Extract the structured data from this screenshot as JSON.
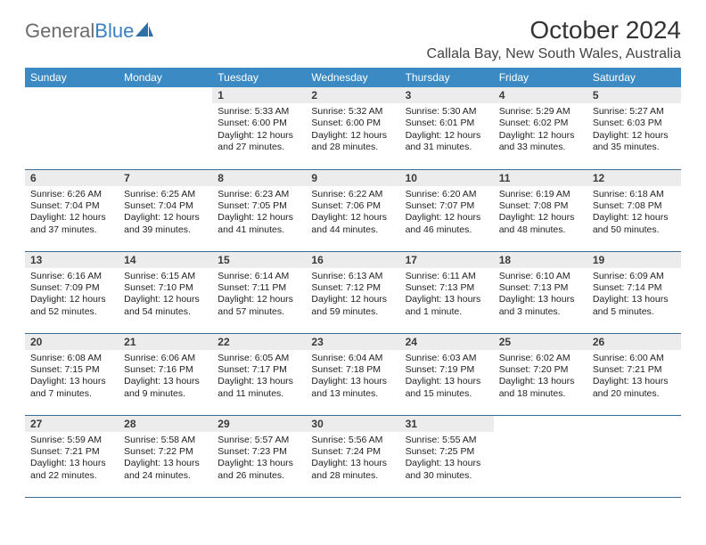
{
  "logo": {
    "part1": "General",
    "part2": "Blue"
  },
  "title": "October 2024",
  "location": "Callala Bay, New South Wales, Australia",
  "colors": {
    "header_bg": "#3b8ac4",
    "header_text": "#ffffff",
    "daynum_bg": "#ececec",
    "row_border": "#3d6c93",
    "logo_blue": "#3b7fc4",
    "logo_gray": "#6b6b6b"
  },
  "weekdays": [
    "Sunday",
    "Monday",
    "Tuesday",
    "Wednesday",
    "Thursday",
    "Friday",
    "Saturday"
  ],
  "weeks": [
    [
      {
        "empty": true
      },
      {
        "empty": true
      },
      {
        "n": "1",
        "sr": "5:33 AM",
        "ss": "6:00 PM",
        "dl": "12 hours and 27 minutes."
      },
      {
        "n": "2",
        "sr": "5:32 AM",
        "ss": "6:00 PM",
        "dl": "12 hours and 28 minutes."
      },
      {
        "n": "3",
        "sr": "5:30 AM",
        "ss": "6:01 PM",
        "dl": "12 hours and 31 minutes."
      },
      {
        "n": "4",
        "sr": "5:29 AM",
        "ss": "6:02 PM",
        "dl": "12 hours and 33 minutes."
      },
      {
        "n": "5",
        "sr": "5:27 AM",
        "ss": "6:03 PM",
        "dl": "12 hours and 35 minutes."
      }
    ],
    [
      {
        "n": "6",
        "sr": "6:26 AM",
        "ss": "7:04 PM",
        "dl": "12 hours and 37 minutes."
      },
      {
        "n": "7",
        "sr": "6:25 AM",
        "ss": "7:04 PM",
        "dl": "12 hours and 39 minutes."
      },
      {
        "n": "8",
        "sr": "6:23 AM",
        "ss": "7:05 PM",
        "dl": "12 hours and 41 minutes."
      },
      {
        "n": "9",
        "sr": "6:22 AM",
        "ss": "7:06 PM",
        "dl": "12 hours and 44 minutes."
      },
      {
        "n": "10",
        "sr": "6:20 AM",
        "ss": "7:07 PM",
        "dl": "12 hours and 46 minutes."
      },
      {
        "n": "11",
        "sr": "6:19 AM",
        "ss": "7:08 PM",
        "dl": "12 hours and 48 minutes."
      },
      {
        "n": "12",
        "sr": "6:18 AM",
        "ss": "7:08 PM",
        "dl": "12 hours and 50 minutes."
      }
    ],
    [
      {
        "n": "13",
        "sr": "6:16 AM",
        "ss": "7:09 PM",
        "dl": "12 hours and 52 minutes."
      },
      {
        "n": "14",
        "sr": "6:15 AM",
        "ss": "7:10 PM",
        "dl": "12 hours and 54 minutes."
      },
      {
        "n": "15",
        "sr": "6:14 AM",
        "ss": "7:11 PM",
        "dl": "12 hours and 57 minutes."
      },
      {
        "n": "16",
        "sr": "6:13 AM",
        "ss": "7:12 PM",
        "dl": "12 hours and 59 minutes."
      },
      {
        "n": "17",
        "sr": "6:11 AM",
        "ss": "7:13 PM",
        "dl": "13 hours and 1 minute."
      },
      {
        "n": "18",
        "sr": "6:10 AM",
        "ss": "7:13 PM",
        "dl": "13 hours and 3 minutes."
      },
      {
        "n": "19",
        "sr": "6:09 AM",
        "ss": "7:14 PM",
        "dl": "13 hours and 5 minutes."
      }
    ],
    [
      {
        "n": "20",
        "sr": "6:08 AM",
        "ss": "7:15 PM",
        "dl": "13 hours and 7 minutes."
      },
      {
        "n": "21",
        "sr": "6:06 AM",
        "ss": "7:16 PM",
        "dl": "13 hours and 9 minutes."
      },
      {
        "n": "22",
        "sr": "6:05 AM",
        "ss": "7:17 PM",
        "dl": "13 hours and 11 minutes."
      },
      {
        "n": "23",
        "sr": "6:04 AM",
        "ss": "7:18 PM",
        "dl": "13 hours and 13 minutes."
      },
      {
        "n": "24",
        "sr": "6:03 AM",
        "ss": "7:19 PM",
        "dl": "13 hours and 15 minutes."
      },
      {
        "n": "25",
        "sr": "6:02 AM",
        "ss": "7:20 PM",
        "dl": "13 hours and 18 minutes."
      },
      {
        "n": "26",
        "sr": "6:00 AM",
        "ss": "7:21 PM",
        "dl": "13 hours and 20 minutes."
      }
    ],
    [
      {
        "n": "27",
        "sr": "5:59 AM",
        "ss": "7:21 PM",
        "dl": "13 hours and 22 minutes."
      },
      {
        "n": "28",
        "sr": "5:58 AM",
        "ss": "7:22 PM",
        "dl": "13 hours and 24 minutes."
      },
      {
        "n": "29",
        "sr": "5:57 AM",
        "ss": "7:23 PM",
        "dl": "13 hours and 26 minutes."
      },
      {
        "n": "30",
        "sr": "5:56 AM",
        "ss": "7:24 PM",
        "dl": "13 hours and 28 minutes."
      },
      {
        "n": "31",
        "sr": "5:55 AM",
        "ss": "7:25 PM",
        "dl": "13 hours and 30 minutes."
      },
      {
        "empty": true
      },
      {
        "empty": true
      }
    ]
  ],
  "labels": {
    "sunrise": "Sunrise: ",
    "sunset": "Sunset: ",
    "daylight": "Daylight: "
  }
}
